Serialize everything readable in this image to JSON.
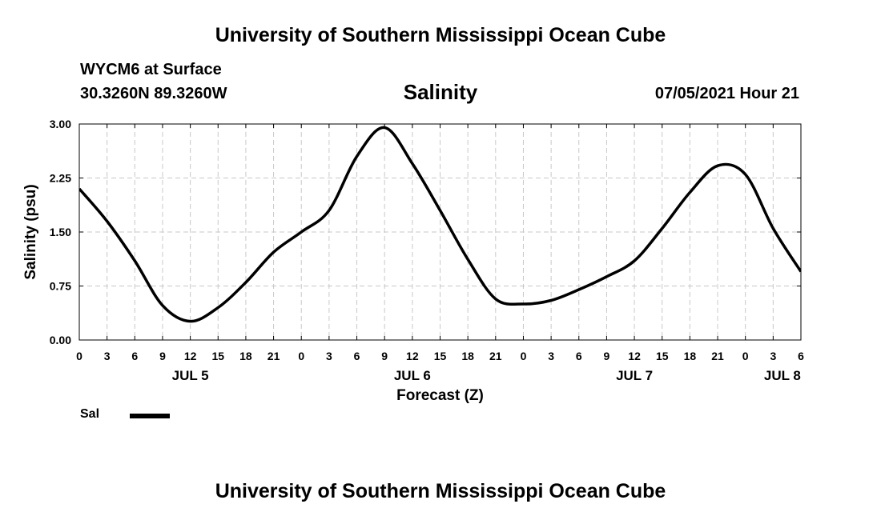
{
  "header": {
    "title": "University of Southern Mississippi Ocean Cube",
    "station": "WYCM6 at Surface",
    "coords": "30.3260N  89.3260W",
    "variable": "Salinity",
    "datetime": "07/05/2021 Hour 21"
  },
  "footer": {
    "title": "University of Southern Mississippi Ocean Cube"
  },
  "legend": {
    "label": "Sal"
  },
  "chart_data": {
    "type": "line",
    "title": "Salinity",
    "xlabel": "Forecast (Z)",
    "ylabel": "Salinity (psu)",
    "xlim": [
      0,
      78
    ],
    "ylim": [
      0,
      3
    ],
    "grid": true,
    "x_ticks": [
      0,
      3,
      6,
      9,
      12,
      15,
      18,
      21,
      24,
      27,
      30,
      33,
      36,
      39,
      42,
      45,
      48,
      51,
      54,
      57,
      60,
      63,
      66,
      69,
      72,
      75,
      78
    ],
    "x_tick_labels": [
      "0",
      "3",
      "6",
      "9",
      "12",
      "15",
      "18",
      "21",
      "0",
      "3",
      "6",
      "9",
      "12",
      "15",
      "18",
      "21",
      "0",
      "3",
      "6",
      "9",
      "12",
      "15",
      "18",
      "21",
      "0",
      "3",
      "6"
    ],
    "y_ticks": [
      0,
      0.75,
      1.5,
      2.25,
      3.0
    ],
    "y_tick_labels": [
      "0.00",
      "0.75",
      "1.50",
      "2.25",
      "3.00"
    ],
    "date_labels": [
      {
        "x": 12,
        "label": "JUL 5"
      },
      {
        "x": 36,
        "label": "JUL 6"
      },
      {
        "x": 60,
        "label": "JUL 7"
      },
      {
        "x": 76,
        "label": "JUL 8"
      }
    ],
    "series": [
      {
        "name": "Sal",
        "x": [
          0,
          3,
          6,
          9,
          12,
          15,
          18,
          21,
          24,
          27,
          30,
          33,
          36,
          39,
          42,
          45,
          48,
          51,
          54,
          57,
          60,
          63,
          66,
          69,
          72,
          75,
          78
        ],
        "values": [
          2.1,
          1.65,
          1.1,
          0.48,
          0.26,
          0.45,
          0.8,
          1.22,
          1.5,
          1.8,
          2.55,
          2.95,
          2.45,
          1.8,
          1.12,
          0.57,
          0.5,
          0.55,
          0.7,
          0.88,
          1.1,
          1.55,
          2.05,
          2.42,
          2.3,
          1.55,
          0.95
        ]
      }
    ]
  }
}
